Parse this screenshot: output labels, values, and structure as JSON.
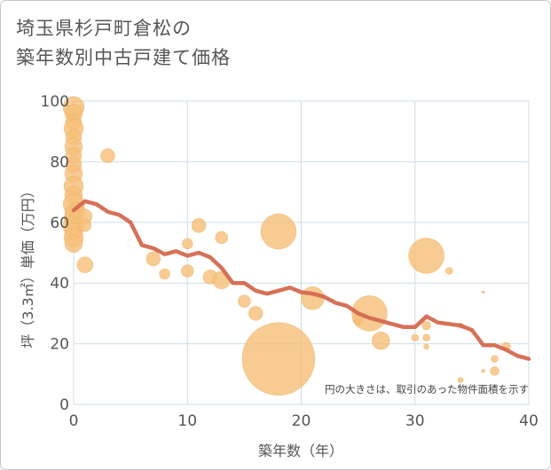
{
  "title_line1": "埼玉県杉戸町倉松の",
  "title_line2": "築年数別中古戸建て価格",
  "chart_data": {
    "type": "scatter",
    "title": "埼玉県杉戸町倉松の築年数別中古戸建て価格",
    "xlabel": "築年数（年）",
    "ylabel": "坪（3.3㎡）単価（万円）",
    "xlim": [
      0,
      40
    ],
    "ylim": [
      0,
      100
    ],
    "xticks": [
      0,
      10,
      20,
      30,
      40
    ],
    "yticks": [
      0,
      20,
      40,
      60,
      80,
      100
    ],
    "grid": true,
    "note": "円の大きさは、取引のあった物件面積を示す",
    "colors": {
      "bubble": "#f5c07a",
      "bubble_edge": "#e8a652",
      "line": "#d4694f",
      "grid": "#cfdbe6",
      "plot_bg": "#ffffff"
    },
    "bubbles": [
      {
        "x": 0,
        "y": 98,
        "s": 12
      },
      {
        "x": 0,
        "y": 96,
        "s": 10
      },
      {
        "x": 0,
        "y": 93,
        "s": 9
      },
      {
        "x": 0,
        "y": 91,
        "s": 11
      },
      {
        "x": 0,
        "y": 88,
        "s": 9
      },
      {
        "x": 0,
        "y": 85,
        "s": 10
      },
      {
        "x": 0,
        "y": 82,
        "s": 9
      },
      {
        "x": 0,
        "y": 79,
        "s": 9
      },
      {
        "x": 0,
        "y": 76,
        "s": 10
      },
      {
        "x": 0,
        "y": 72,
        "s": 11
      },
      {
        "x": 0,
        "y": 69,
        "s": 10
      },
      {
        "x": 0,
        "y": 66,
        "s": 12
      },
      {
        "x": 0,
        "y": 63,
        "s": 10
      },
      {
        "x": 0,
        "y": 61,
        "s": 11
      },
      {
        "x": 0,
        "y": 59,
        "s": 12
      },
      {
        "x": 0,
        "y": 57,
        "s": 10
      },
      {
        "x": 0,
        "y": 55,
        "s": 11
      },
      {
        "x": 0,
        "y": 53,
        "s": 10
      },
      {
        "x": 0.3,
        "y": 64,
        "s": 9
      },
      {
        "x": 1,
        "y": 62,
        "s": 8
      },
      {
        "x": 1,
        "y": 59,
        "s": 7
      },
      {
        "x": 1,
        "y": 46,
        "s": 9
      },
      {
        "x": 3,
        "y": 82,
        "s": 8
      },
      {
        "x": 7,
        "y": 48,
        "s": 8
      },
      {
        "x": 8,
        "y": 43,
        "s": 6
      },
      {
        "x": 10,
        "y": 53,
        "s": 6
      },
      {
        "x": 10,
        "y": 44,
        "s": 7
      },
      {
        "x": 11,
        "y": 59,
        "s": 8
      },
      {
        "x": 12,
        "y": 42,
        "s": 8
      },
      {
        "x": 13,
        "y": 55,
        "s": 7
      },
      {
        "x": 13,
        "y": 41,
        "s": 10
      },
      {
        "x": 15,
        "y": 34,
        "s": 7
      },
      {
        "x": 16,
        "y": 30,
        "s": 8
      },
      {
        "x": 18,
        "y": 57,
        "s": 20
      },
      {
        "x": 18,
        "y": 15,
        "s": 41
      },
      {
        "x": 21,
        "y": 35,
        "s": 13
      },
      {
        "x": 25,
        "y": 28,
        "s": 6
      },
      {
        "x": 25,
        "y": 27,
        "s": 4
      },
      {
        "x": 26,
        "y": 30,
        "s": 20
      },
      {
        "x": 27,
        "y": 21,
        "s": 10
      },
      {
        "x": 30,
        "y": 22,
        "s": 4
      },
      {
        "x": 31,
        "y": 49,
        "s": 20
      },
      {
        "x": 31,
        "y": 26,
        "s": 5
      },
      {
        "x": 31,
        "y": 22,
        "s": 4
      },
      {
        "x": 31,
        "y": 19,
        "s": 3
      },
      {
        "x": 33,
        "y": 44,
        "s": 4
      },
      {
        "x": 34,
        "y": 26,
        "s": 3
      },
      {
        "x": 34,
        "y": 8,
        "s": 3
      },
      {
        "x": 36,
        "y": 37,
        "s": 1.5
      },
      {
        "x": 37,
        "y": 15,
        "s": 4
      },
      {
        "x": 37,
        "y": 11,
        "s": 5
      },
      {
        "x": 38,
        "y": 19,
        "s": 5
      },
      {
        "x": 36,
        "y": 11,
        "s": 2
      }
    ],
    "line": {
      "x": [
        0,
        1,
        2,
        3,
        4,
        5,
        6,
        7,
        8,
        9,
        10,
        11,
        12,
        13,
        14,
        15,
        16,
        17,
        18,
        19,
        20,
        21,
        22,
        23,
        24,
        25,
        26,
        27,
        28,
        29,
        30,
        31,
        32,
        33,
        34,
        35,
        36,
        37,
        38,
        39,
        40
      ],
      "y": [
        64,
        67,
        66,
        63.5,
        62.5,
        60,
        52.5,
        51.5,
        49.5,
        50.5,
        49,
        50,
        48.5,
        45,
        40,
        40,
        37.5,
        36.5,
        37.5,
        38.5,
        37,
        36.5,
        35.5,
        33.5,
        32.5,
        30,
        28.5,
        27.5,
        26.5,
        25.5,
        25.5,
        29,
        27,
        26.5,
        26,
        24.5,
        19.5,
        19.5,
        18,
        16,
        15
      ]
    }
  }
}
